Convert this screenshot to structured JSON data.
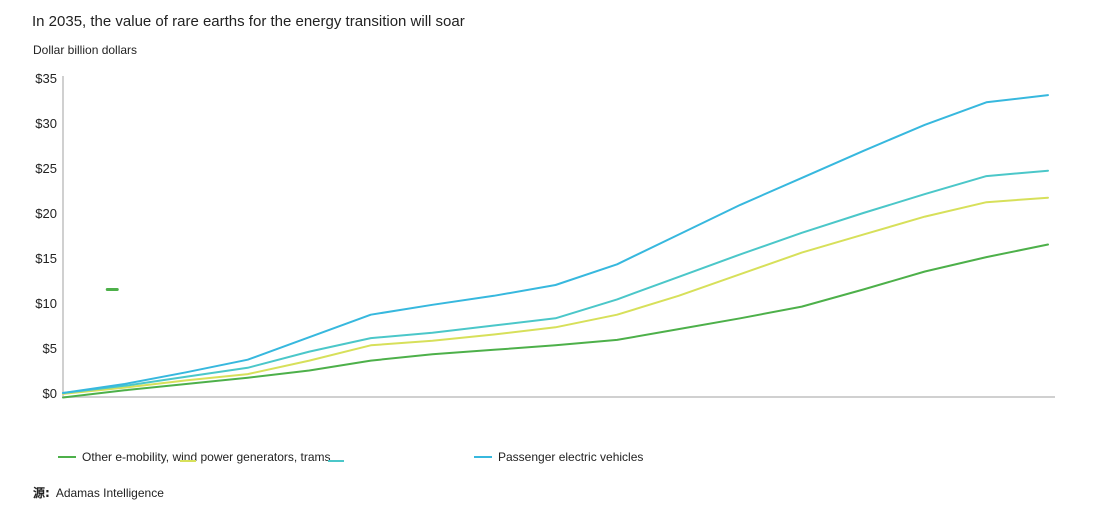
{
  "title": "In 2035, the value of rare earths for the energy transition will soar",
  "subtitle": "Dollar billion dollars",
  "legend": {
    "items": [
      {
        "label": "Other e-mobility, wind power generators, trams",
        "color": "#4db04a"
      },
      {
        "label": "Passenger electric vehicles",
        "color": "#37b8de"
      }
    ],
    "stray_colors": [
      "#d7e05a",
      "#4bc7c9"
    ]
  },
  "source": {
    "prefix": "源:",
    "text": "Adamas Intelligence"
  },
  "chart_data": {
    "type": "line",
    "title": "In 2035, the value of rare earths for the energy transition will soar",
    "ylabel": "Dollar billion dollars",
    "xlabel": "",
    "ylim": [
      0,
      35
    ],
    "yticks": [
      0,
      5,
      10,
      15,
      20,
      25,
      30,
      35
    ],
    "ytick_labels": [
      "$0",
      "$5",
      "$10",
      "$15",
      "$20",
      "$25",
      "$30",
      "$35"
    ],
    "x": [
      0,
      1,
      2,
      3,
      4,
      5,
      6,
      7,
      8,
      9,
      10,
      11,
      12,
      13,
      14,
      15,
      16
    ],
    "grid": false,
    "series": [
      {
        "name": "Other e-mobility, wind power generators, trams",
        "color": "#4db04a",
        "values": [
          -0.5,
          0.3,
          1.0,
          1.7,
          2.5,
          3.6,
          4.3,
          4.8,
          5.3,
          5.9,
          7.1,
          8.3,
          9.6,
          11.5,
          13.5,
          15.1,
          16.5
        ]
      },
      {
        "name": "",
        "color": "#d7e05a",
        "values": [
          -0.1,
          0.6,
          1.4,
          2.1,
          3.6,
          5.3,
          5.8,
          6.5,
          7.3,
          8.7,
          10.8,
          13.2,
          15.6,
          17.6,
          19.6,
          21.2,
          21.7
        ]
      },
      {
        "name": "",
        "color": "#4bc7c9",
        "values": [
          0.0,
          0.8,
          1.8,
          2.8,
          4.6,
          6.1,
          6.7,
          7.5,
          8.3,
          10.4,
          12.9,
          15.4,
          17.8,
          20.0,
          22.1,
          24.1,
          24.7
        ]
      },
      {
        "name": "Passenger electric vehicles",
        "color": "#37b8de",
        "values": [
          0.0,
          1.0,
          2.3,
          3.7,
          6.2,
          8.7,
          9.8,
          10.8,
          12.0,
          14.3,
          17.6,
          20.9,
          23.9,
          26.9,
          29.8,
          32.3,
          33.1
        ]
      }
    ],
    "annotation": {
      "label": "",
      "color": "#4db04a",
      "x": 0.8,
      "y": 11.5
    }
  }
}
